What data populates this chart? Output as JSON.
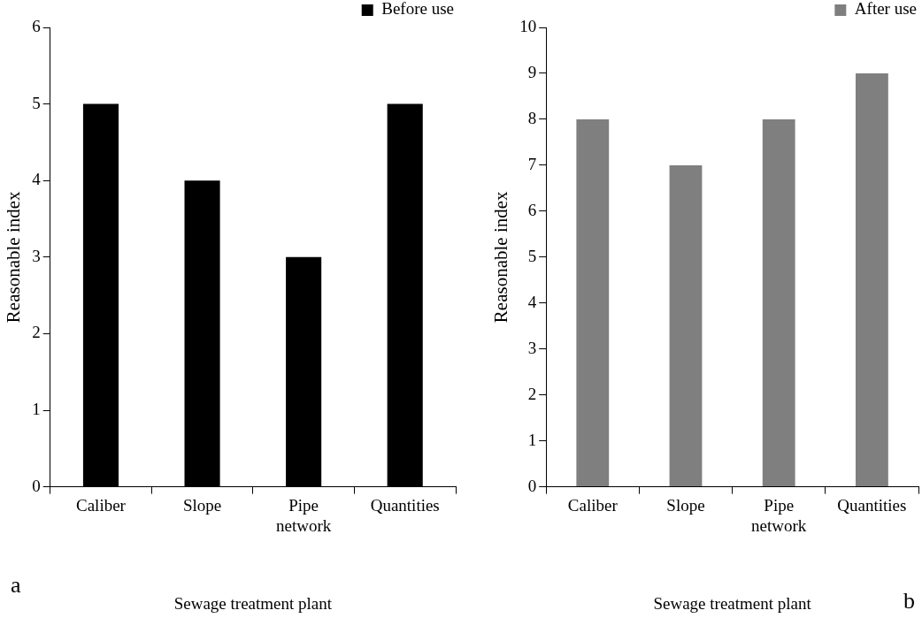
{
  "chart_data": [
    {
      "type": "bar",
      "categories": [
        "Caliber",
        "Slope",
        "Pipe network",
        "Quantities"
      ],
      "series": [
        {
          "name": "Before use",
          "color": "#000000",
          "values": [
            5,
            4,
            3,
            5
          ]
        }
      ],
      "xlabel": "Sewage treatment plant",
      "ylabel": "Reasonable index",
      "ylim": [
        0,
        6
      ],
      "yticks": [
        0,
        1,
        2,
        3,
        4,
        5,
        6
      ],
      "grid": false,
      "legend": "top right",
      "annotations": [
        "a"
      ]
    },
    {
      "type": "bar",
      "categories": [
        "Caliber",
        "Slope",
        "Pipe network",
        "Quantities"
      ],
      "series": [
        {
          "name": "After use",
          "color": "#7f7f7f",
          "values": [
            8,
            7,
            8,
            9
          ]
        }
      ],
      "xlabel": "Sewage treatment plant",
      "ylabel": "Reasonable index",
      "ylim": [
        0,
        10
      ],
      "yticks": [
        0,
        1,
        2,
        3,
        4,
        5,
        6,
        7,
        8,
        9,
        10
      ],
      "grid": false,
      "legend": "top right",
      "annotations": [
        "b"
      ]
    }
  ]
}
